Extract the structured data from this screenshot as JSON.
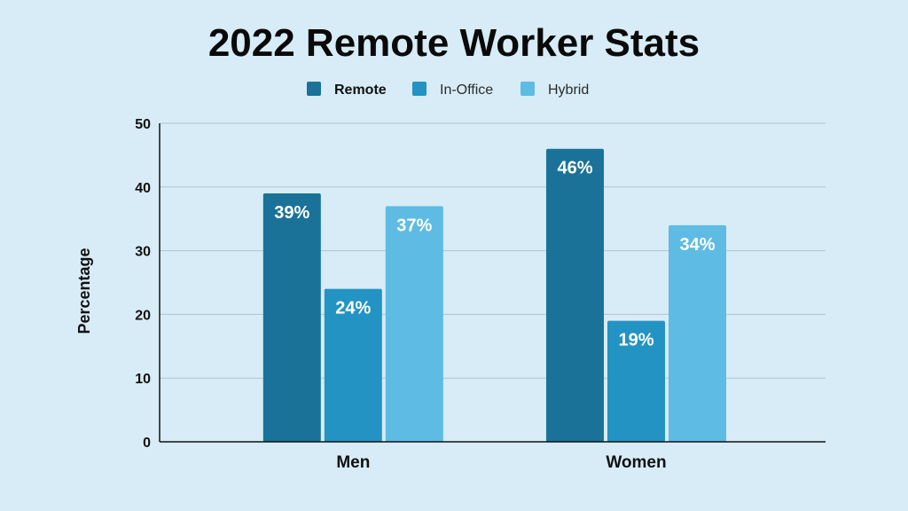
{
  "chart_data": {
    "type": "bar",
    "title": "2022 Remote Worker Stats",
    "xlabel": "",
    "ylabel": "Percentage",
    "categories": [
      "Men",
      "Women"
    ],
    "series": [
      {
        "name": "Remote",
        "values": [
          39,
          46
        ],
        "labels": [
          "39%",
          "46%"
        ],
        "color": "#1a7299"
      },
      {
        "name": "In-Office",
        "values": [
          24,
          19
        ],
        "labels": [
          "24%",
          "19%"
        ],
        "color": "#2393c4"
      },
      {
        "name": "Hybrid",
        "values": [
          37,
          34
        ],
        "labels": [
          "37%",
          "34%"
        ],
        "color": "#5ebbe3"
      }
    ],
    "ylim": [
      0,
      50
    ],
    "yticks": [
      0,
      10,
      20,
      30,
      40,
      50
    ],
    "grid": true,
    "legend_position": "top"
  },
  "colors": {
    "background": "#d7ecf6",
    "gridline": "#aec4cf",
    "axis": "#111111"
  }
}
